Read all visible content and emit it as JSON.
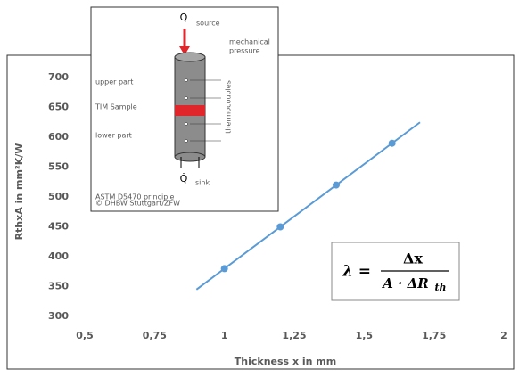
{
  "chart_data": {
    "type": "scatter",
    "x_label": "Thickness x in mm",
    "y_label": "RthxA in mm²K/W",
    "x": [
      1,
      1.2,
      1.4,
      1.6
    ],
    "values": [
      380,
      450,
      520,
      590
    ],
    "color": "#5b9bd5",
    "trendline": {
      "x": [
        0.9,
        1.7
      ],
      "values": [
        345,
        625
      ]
    },
    "xlim": [
      0.5,
      2
    ],
    "xticks": [
      {
        "value": 0.5,
        "label": "0,5"
      },
      {
        "value": 0.75,
        "label": "0,75"
      },
      1,
      {
        "value": 1.25,
        "label": "1,25"
      },
      {
        "value": 1.5,
        "label": "1,5"
      },
      {
        "value": 1.75,
        "label": "1,75"
      },
      2
    ],
    "ylim": [
      300,
      700
    ],
    "yticks": [
      300,
      350,
      400,
      450,
      500,
      550,
      600,
      650,
      700
    ],
    "grid": false,
    "formula": {
      "lhs": "λ =",
      "numerator": "Δx",
      "denominator": "A · ΔR",
      "subscript": "th"
    },
    "inset": {
      "q_source": "Q̇",
      "source": "source",
      "pressure": [
        "mechanical",
        "pressure"
      ],
      "upper": "upper part",
      "tim": "TIM Sample",
      "lower": "lower part",
      "thermocouples": "thermocouples",
      "q_sink": "Q̇",
      "sink": "sink",
      "credit": [
        "ASTM D5470 principle",
        "© DHBW Stuttgart/ZFW"
      ]
    }
  }
}
